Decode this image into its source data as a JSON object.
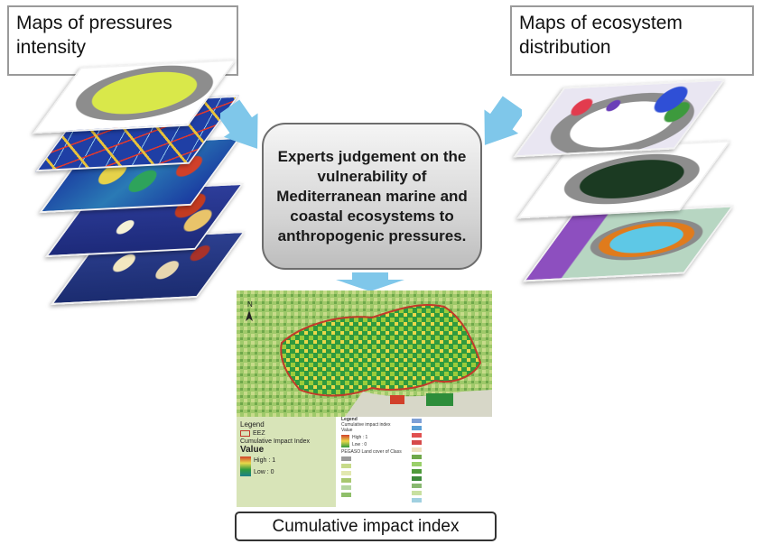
{
  "pressures": {
    "title": "Maps of pressures intensity"
  },
  "ecosystems": {
    "title": "Maps of ecosystem distribution"
  },
  "experts": {
    "text": "Experts judgement on the vulnerability of Mediterranean marine and coastal ecosystems to anthropogenic pressures."
  },
  "result": {
    "title": "Cumulative impact index"
  },
  "map": {
    "north_label": "N"
  },
  "legend_left": {
    "title": "Legend",
    "eez_label": "EEZ",
    "index_label": "Cumulative Impact Index",
    "value_label": "Value",
    "high_label": "High : 1",
    "low_label": "Low : 0"
  },
  "legend_right": {
    "title": "Legend",
    "index_label": "Cumulative impact index",
    "value_label": "Value",
    "high_label": "High : 1",
    "low_label": "Low : 0",
    "landcover_label": "PEGASO Land cover of Class"
  },
  "colors": {
    "arrow_blue": "#7fc7ea",
    "box_border": "#6d6d6d",
    "label_border": "#9a9a9a"
  }
}
